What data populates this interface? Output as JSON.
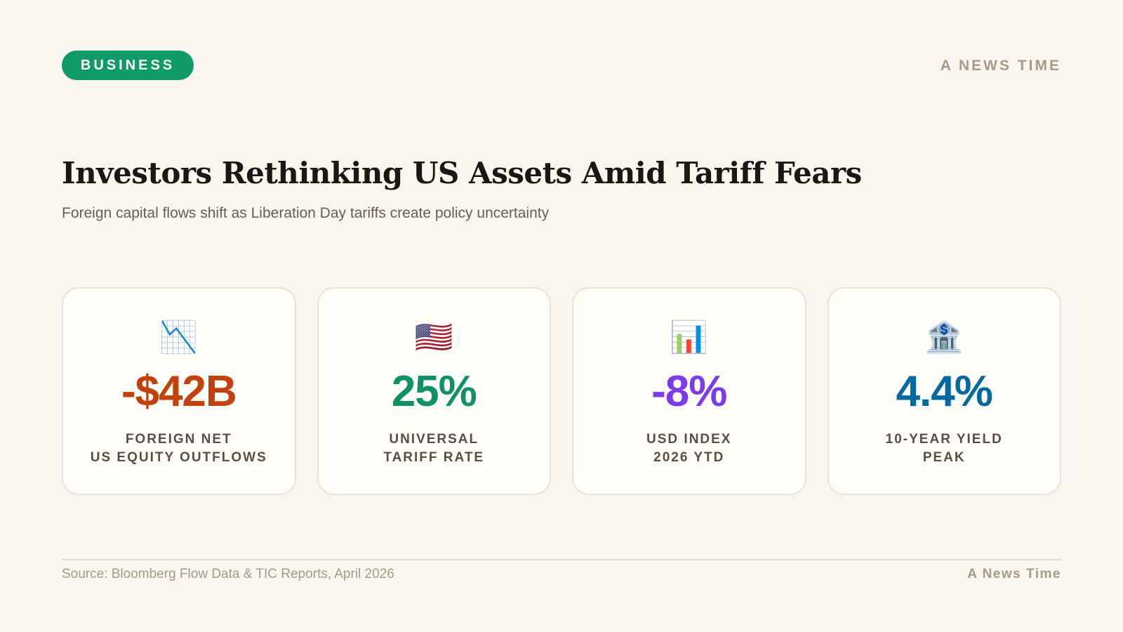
{
  "header": {
    "tag": "BUSINESS",
    "tag_color": "#0f9a68",
    "brand": "A NEWS TIME"
  },
  "title": "Investors Rethinking US Assets Amid Tariff Fears",
  "subtitle": "Foreign capital flows shift as Liberation Day tariffs create policy uncertainty",
  "cards": [
    {
      "icon": "📉",
      "value": "-$42B",
      "color": "#c2410c",
      "label": [
        "FOREIGN NET",
        "US EQUITY OUTFLOWS"
      ]
    },
    {
      "icon": "🇺🇸",
      "value": "25%",
      "color": "#0f9068",
      "label": [
        "UNIVERSAL",
        "TARIFF RATE"
      ]
    },
    {
      "icon": "📊",
      "value": "-8%",
      "color": "#7c3aed",
      "label": [
        "USD INDEX",
        "2026 YTD"
      ]
    },
    {
      "icon": "🏦",
      "value": "4.4%",
      "color": "#0369a1",
      "label": [
        "10-YEAR YIELD",
        "PEAK"
      ]
    }
  ],
  "footer": {
    "source": "Source: Bloomberg Flow Data & TIC Reports, April 2026",
    "brand": "A News Time"
  }
}
